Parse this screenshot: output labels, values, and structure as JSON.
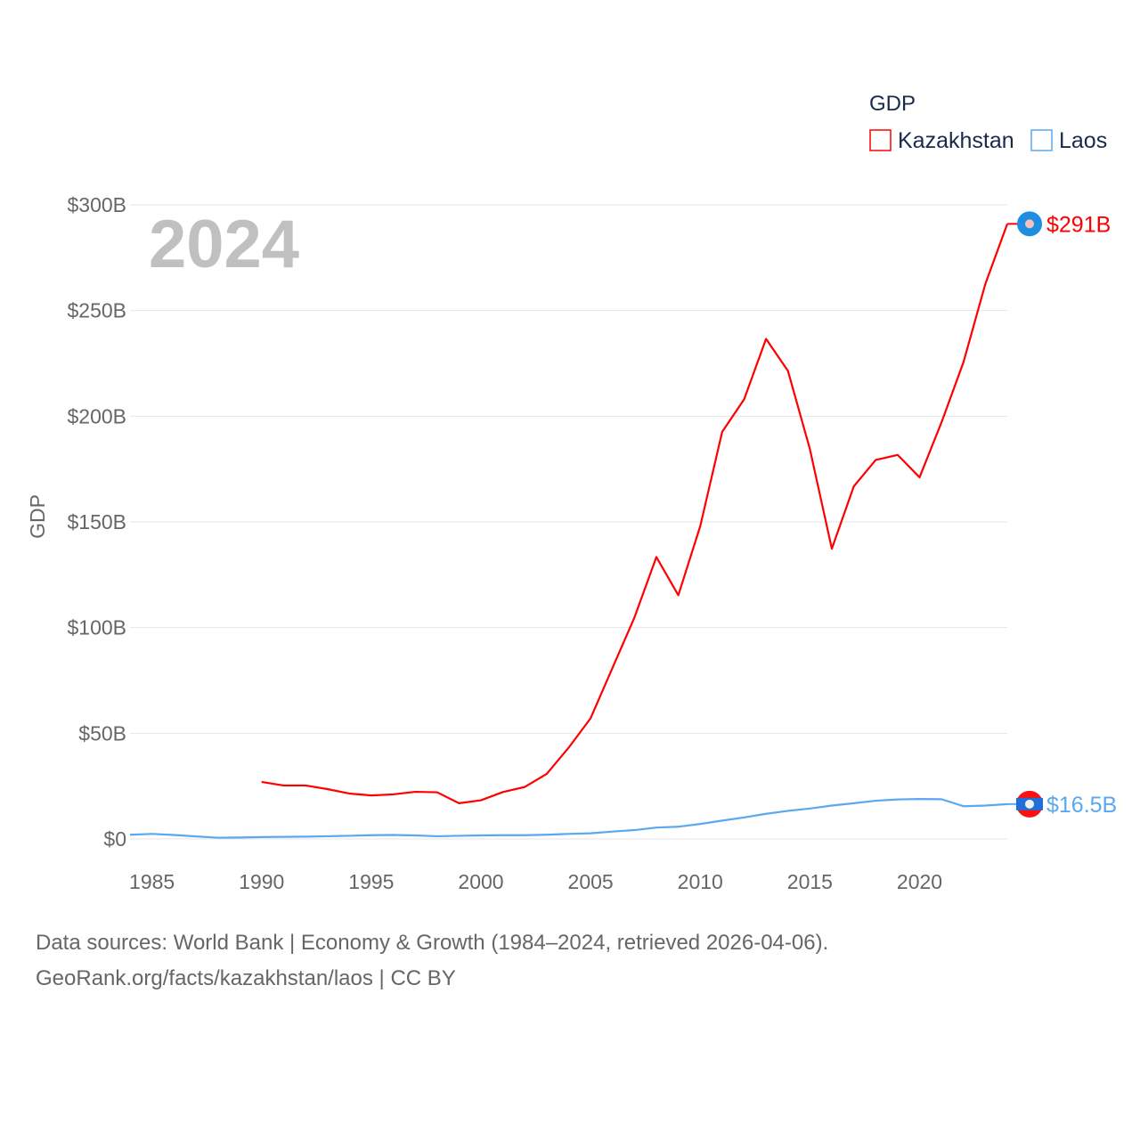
{
  "chart_data": {
    "type": "line",
    "title": "2024",
    "xlabel": "",
    "ylabel": "GDP",
    "xlim": [
      1984,
      2024
    ],
    "ylim": [
      0,
      300
    ],
    "x_ticks": [
      "1985",
      "1990",
      "1995",
      "2000",
      "2005",
      "2010",
      "2015",
      "2020"
    ],
    "y_ticks": [
      "$0",
      "$50B",
      "$100B",
      "$150B",
      "$200B",
      "$250B",
      "$300B"
    ],
    "grid": true,
    "legend": {
      "title": "GDP",
      "placement": "top-right"
    },
    "series": [
      {
        "name": "Kazakhstan",
        "color": "#ff0000",
        "end_label": "$291B",
        "x": [
          1990,
          1991,
          1992,
          1993,
          1994,
          1995,
          1996,
          1997,
          1998,
          1999,
          2000,
          2001,
          2002,
          2003,
          2004,
          2005,
          2006,
          2007,
          2008,
          2009,
          2010,
          2011,
          2012,
          2013,
          2014,
          2015,
          2016,
          2017,
          2018,
          2019,
          2020,
          2021,
          2022,
          2023,
          2024
        ],
        "values": [
          27.0,
          25.3,
          25.3,
          23.6,
          21.5,
          20.6,
          21.1,
          22.3,
          22.1,
          16.9,
          18.3,
          22.2,
          24.6,
          30.8,
          43.2,
          57.1,
          81.0,
          104.8,
          133.4,
          115.3,
          148.0,
          192.6,
          208.0,
          236.6,
          221.4,
          184.4,
          137.3,
          166.8,
          179.3,
          181.7,
          171.1,
          197.1,
          225.5,
          262.6,
          291.0
        ]
      },
      {
        "name": "Laos",
        "color": "#5ba8f0",
        "end_label": "$16.5B",
        "x": [
          1984,
          1985,
          1986,
          1987,
          1988,
          1989,
          1990,
          1991,
          1992,
          1993,
          1994,
          1995,
          1996,
          1997,
          1998,
          1999,
          2000,
          2001,
          2002,
          2003,
          2004,
          2005,
          2006,
          2007,
          2008,
          2009,
          2010,
          2011,
          2012,
          2013,
          2014,
          2015,
          2016,
          2017,
          2018,
          2019,
          2020,
          2021,
          2022,
          2023,
          2024
        ],
        "values": [
          2.0,
          2.4,
          1.9,
          1.2,
          0.6,
          0.7,
          0.9,
          1.0,
          1.1,
          1.3,
          1.5,
          1.8,
          1.9,
          1.7,
          1.3,
          1.5,
          1.7,
          1.8,
          1.8,
          2.0,
          2.4,
          2.7,
          3.5,
          4.2,
          5.4,
          5.8,
          7.1,
          8.7,
          10.2,
          11.9,
          13.3,
          14.4,
          15.8,
          16.9,
          18.1,
          18.7,
          18.9,
          18.8,
          15.5,
          15.8,
          16.5
        ]
      }
    ]
  },
  "footer": {
    "line1": "Data sources: World Bank | Economy & Growth (1984–2024, retrieved 2026-04-06).",
    "line2": "GeoRank.org/facts/kazakhstan/laos | CC BY"
  }
}
